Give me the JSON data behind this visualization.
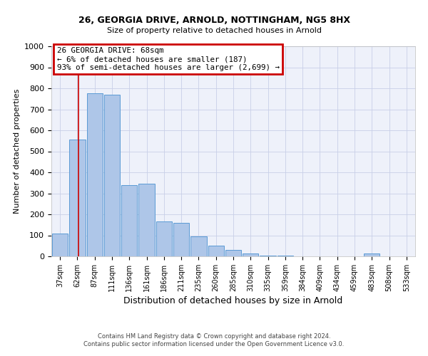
{
  "title_line1": "26, GEORGIA DRIVE, ARNOLD, NOTTINGHAM, NG5 8HX",
  "title_line2": "Size of property relative to detached houses in Arnold",
  "xlabel": "Distribution of detached houses by size in Arnold",
  "ylabel": "Number of detached properties",
  "bar_labels": [
    "37sqm",
    "62sqm",
    "87sqm",
    "111sqm",
    "136sqm",
    "161sqm",
    "186sqm",
    "211sqm",
    "235sqm",
    "260sqm",
    "285sqm",
    "310sqm",
    "335sqm",
    "359sqm",
    "384sqm",
    "409sqm",
    "434sqm",
    "459sqm",
    "483sqm",
    "508sqm",
    "533sqm"
  ],
  "bar_heights": [
    110,
    555,
    775,
    770,
    340,
    345,
    165,
    160,
    95,
    50,
    30,
    15,
    5,
    5,
    0,
    0,
    0,
    0,
    15,
    0,
    0
  ],
  "bar_color": "#aec6e8",
  "bar_edge_color": "#5b9bd5",
  "ylim": [
    0,
    1000
  ],
  "yticks": [
    0,
    100,
    200,
    300,
    400,
    500,
    600,
    700,
    800,
    900,
    1000
  ],
  "red_line_x": 1.08,
  "annotation_box_text": "26 GEORGIA DRIVE: 68sqm\n← 6% of detached houses are smaller (187)\n93% of semi-detached houses are larger (2,699) →",
  "annotation_box_color": "#cc0000",
  "background_color": "#eef1fa",
  "grid_color": "#c8cfe8",
  "footer_line1": "Contains HM Land Registry data © Crown copyright and database right 2024.",
  "footer_line2": "Contains public sector information licensed under the Open Government Licence v3.0."
}
